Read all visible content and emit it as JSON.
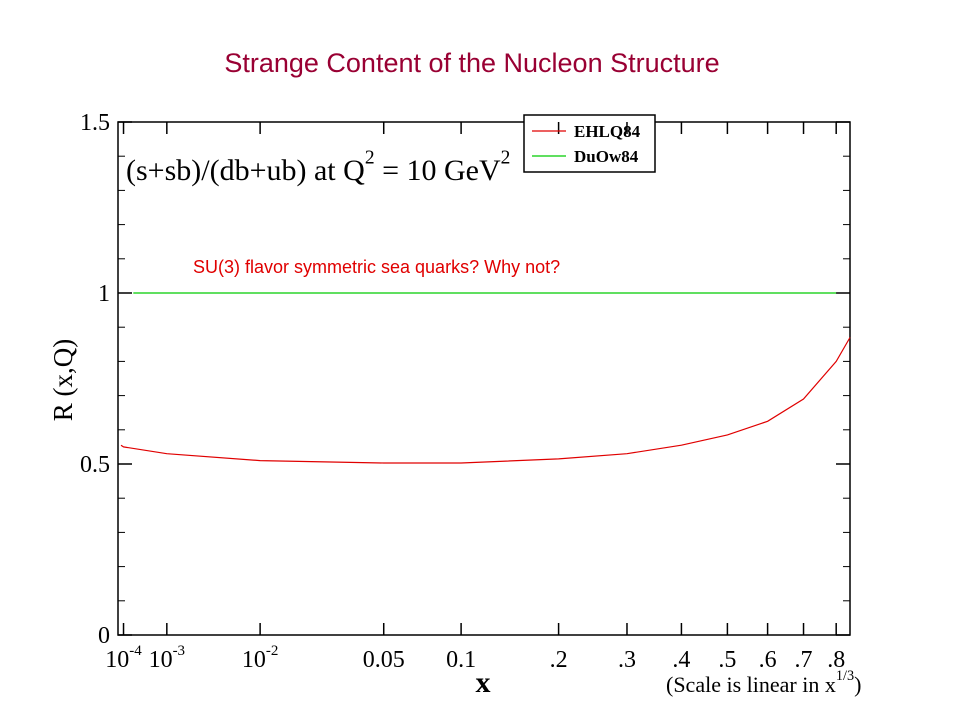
{
  "chart_data": {
    "type": "line",
    "title": "Strange Content of the Nucleon Structure",
    "xlabel": "x",
    "ylabel": "R (x,Q)",
    "xscale": "cube-root",
    "scale_note": [
      {
        "text": "(Scale is linear in x"
      },
      {
        "text": "1/3",
        "sup": true
      },
      {
        "text": ")"
      }
    ],
    "annotation": [
      {
        "text": "(s+sb)/(db+ub) at Q"
      },
      {
        "text": "2",
        "sup": true
      },
      {
        "text": " = 10 GeV"
      },
      {
        "text": "2",
        "sup": true
      }
    ],
    "note": "SU(3) flavor symmetric sea quarks?   Why not?",
    "xlim": [
      6.2e-05,
      0.845
    ],
    "ylim": [
      0,
      1.5
    ],
    "yticks": [
      0,
      0.5,
      1,
      1.5
    ],
    "yminorticks": [
      0.1,
      0.2,
      0.3,
      0.4,
      0.6,
      0.7,
      0.8,
      0.9,
      1.1,
      1.2,
      1.3,
      1.4
    ],
    "xticks": [
      {
        "value": 0.0001,
        "label": "10",
        "exponent": "-4"
      },
      {
        "value": 0.001,
        "label": "10",
        "exponent": "-3"
      },
      {
        "value": 0.01,
        "label": "10",
        "exponent": "-2"
      },
      {
        "value": 0.05,
        "label": "0.05"
      },
      {
        "value": 0.1,
        "label": "0.1"
      },
      {
        "value": 0.2,
        "label": ".2"
      },
      {
        "value": 0.3,
        "label": ".3"
      },
      {
        "value": 0.4,
        "label": ".4"
      },
      {
        "value": 0.5,
        "label": ".5"
      },
      {
        "value": 0.6,
        "label": ".6"
      },
      {
        "value": 0.7,
        "label": ".7"
      },
      {
        "value": 0.8,
        "label": ".8"
      }
    ],
    "series": [
      {
        "name": "EHLQ84",
        "color": "#e00000",
        "x": [
          8.1e-05,
          0.0001,
          0.001,
          0.01,
          0.05,
          0.1,
          0.2,
          0.3,
          0.4,
          0.5,
          0.6,
          0.7,
          0.8,
          0.845
        ],
        "values": [
          0.555,
          0.55,
          0.53,
          0.51,
          0.503,
          0.503,
          0.515,
          0.53,
          0.555,
          0.585,
          0.625,
          0.69,
          0.8,
          0.87
        ]
      },
      {
        "name": "DuOw84",
        "color": "#00cc00",
        "x": [
          0.0002,
          0.8
        ],
        "values": [
          1,
          1
        ]
      }
    ]
  }
}
